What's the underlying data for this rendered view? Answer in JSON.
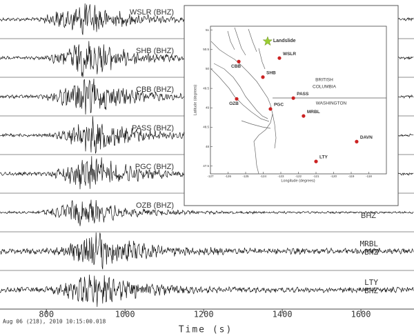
{
  "chart_data": {
    "type": "seismogram",
    "x_label": "Time (s)",
    "start_time": "Aug 06 (218), 2010 10:15:00.018",
    "xlim": [
      682,
      1735
    ],
    "xticks": [
      800,
      1000,
      1200,
      1400,
      1600
    ],
    "traces": [
      {
        "label": "WSLR (BHZ)"
      },
      {
        "label": "SHB (BHZ)"
      },
      {
        "label": "CBB (BHZ)"
      },
      {
        "label": "PASS (BHZ)"
      },
      {
        "label": "PGC (BHZ)"
      },
      {
        "label": "OZB (BHZ)",
        "channel": "BHZ"
      },
      {
        "label": "MRBL",
        "channel": "BHZ"
      },
      {
        "label": "LTY",
        "channel": "BHZ"
      }
    ],
    "map": {
      "type": "scatter",
      "x_label": "Longitude (degrees)",
      "y_label": "Latitude (degrees)",
      "xlim": [
        -127,
        -117
      ],
      "ylim": [
        47.3,
        51.1
      ],
      "xticks": [
        -127,
        -126,
        -125,
        -124,
        -123,
        -122,
        -121,
        -120,
        -119,
        -118
      ],
      "yticks": [
        47.5,
        48,
        48.5,
        49,
        49.5,
        50,
        50.5,
        51
      ],
      "regions": [
        [
          "BRITISH",
          "COLUMBIA"
        ],
        [
          "WASHINGTON"
        ]
      ],
      "landslide": {
        "name": "Landslide",
        "lon": -123.75,
        "lat": 50.71,
        "color": "#9acd32"
      },
      "station_color": "#cc2222",
      "stations": [
        {
          "name": "WSLR",
          "lon": -123.08,
          "lat": 50.28
        },
        {
          "name": "CBB",
          "lon": -125.39,
          "lat": 50.19
        },
        {
          "name": "SHB",
          "lon": -124.02,
          "lat": 49.79
        },
        {
          "name": "PASS",
          "lon": -122.29,
          "lat": 49.25
        },
        {
          "name": "OZB",
          "lon": -125.51,
          "lat": 49.23
        },
        {
          "name": "PGC",
          "lon": -123.59,
          "lat": 48.97
        },
        {
          "name": "MRBL",
          "lon": -121.71,
          "lat": 48.79
        },
        {
          "name": "DAVN",
          "lon": -118.69,
          "lat": 48.13
        },
        {
          "name": "LTY",
          "lon": -121.0,
          "lat": 47.62
        }
      ]
    }
  }
}
